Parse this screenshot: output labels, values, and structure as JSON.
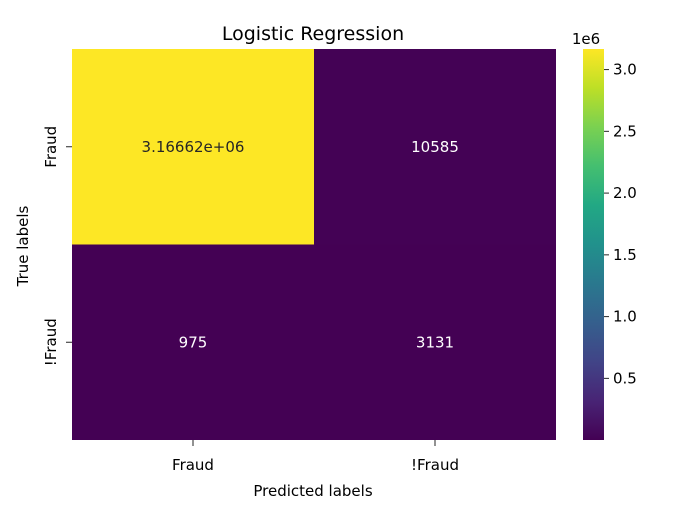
{
  "chart_data": {
    "type": "heatmap",
    "title": "Logistic Regression",
    "xlabel": "Predicted labels",
    "ylabel": "True labels",
    "x_tick_labels": [
      "Fraud",
      "!Fraud"
    ],
    "y_tick_labels": [
      "Fraud",
      "!Fraud"
    ],
    "values": [
      [
        3166620,
        10585
      ],
      [
        975,
        3131
      ]
    ],
    "cell_labels": [
      [
        "3.16662e+06",
        "10585"
      ],
      [
        "975",
        "3131"
      ]
    ],
    "colormap": "viridis",
    "colorbar": {
      "multiplier_label": "1e6",
      "range": [
        975,
        3166620
      ],
      "ticks": [
        0.5,
        1.0,
        1.5,
        2.0,
        2.5,
        3.0
      ],
      "tick_labels": [
        "0.5",
        "1.0",
        "1.5",
        "2.0",
        "2.5",
        "3.0"
      ]
    },
    "colors": {
      "low": "#440154",
      "high": "#fde725",
      "dark_text": "#262626",
      "light_text": "#ffffff"
    }
  }
}
